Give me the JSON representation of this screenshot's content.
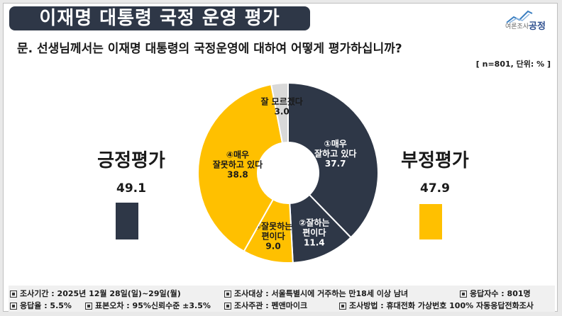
{
  "header": {
    "title": "이재명 대통령 국정 운영 평가",
    "logo_name": "공정",
    "logo_tag": "여론조사"
  },
  "question": "문. 선생님께서는 이재명 대통령의 국정운영에 대하여 어떻게 평가하십니까?",
  "sample_info": "[ n=801, 단위: % ]",
  "summary": {
    "positive": {
      "label": "긍정평가",
      "value": "49.1",
      "color": "#2e3747"
    },
    "negative": {
      "label": "부정평가",
      "value": "47.9",
      "color": "#ffc000"
    }
  },
  "chart_data": {
    "type": "pie",
    "donut": true,
    "unit": "%",
    "categories": [
      "①매우 잘하고 있다",
      "②잘하는 편이다",
      "③잘못하는 편이다",
      "④매우 잘못하고 있다",
      "잘 모르겠다"
    ],
    "values": [
      37.7,
      11.4,
      9.0,
      38.8,
      3.0
    ],
    "colors": [
      "#2e3747",
      "#2e3747",
      "#ffc000",
      "#ffc000",
      "#d9d9d9"
    ],
    "labels": [
      {
        "lines": [
          "①매우",
          "잘하고 있다"
        ],
        "value": "37.7"
      },
      {
        "lines": [
          "②잘하는",
          "편이다"
        ],
        "value": "11.4"
      },
      {
        "lines": [
          "③잘못하는",
          "편이다"
        ],
        "value": "9.0"
      },
      {
        "lines": [
          "④매우",
          "잘못하고 있다"
        ],
        "value": "38.8"
      },
      {
        "lines": [
          "잘 모르겠다"
        ],
        "value": "3.0"
      }
    ],
    "bars": [
      {
        "name": "긍정평가",
        "value": 49.1
      },
      {
        "name": "부정평가",
        "value": 47.9
      }
    ]
  },
  "footer": {
    "period": "조사기간 : 2025년 12월 28일(일)~29일(월)",
    "target": "조사대상 : 서울특별시에 거주하는 만18세 이상 남녀",
    "respondents": "응답자수 : 801명",
    "response_rate": "응답율 : 5.5%",
    "error": "표본오차 : 95%신뢰수준 ±3.5%",
    "organizer": "조사주관 : 펜앤마이크",
    "method": "조사방법 : 휴대전화 가상번호 100% 자동응답전화조사"
  }
}
